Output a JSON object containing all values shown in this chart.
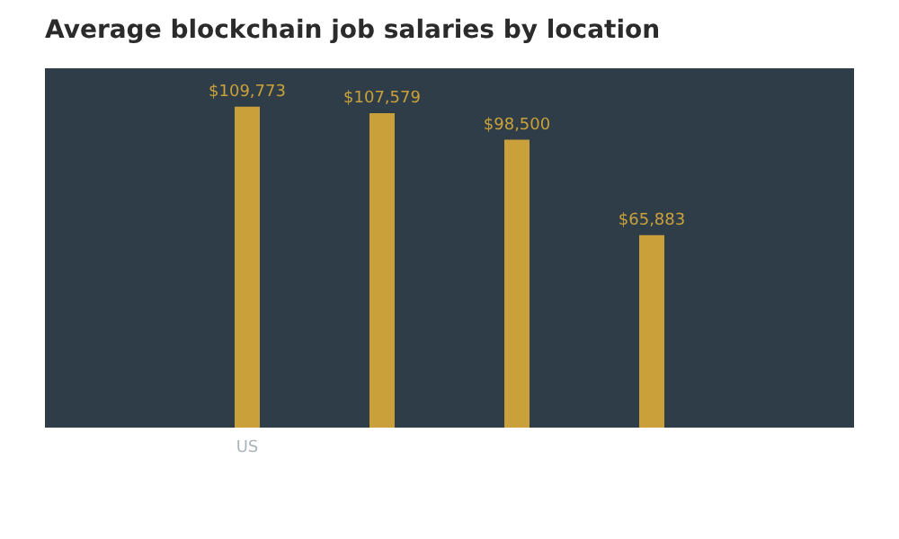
{
  "chart_data": {
    "type": "bar",
    "title": "Average blockchain job salaries by location",
    "categories": [
      "US",
      null,
      null,
      null
    ],
    "values": [
      109773,
      107579,
      98500,
      65883
    ],
    "value_labels": [
      "$109,773",
      "$107,579",
      "$98,500",
      "$65,883"
    ],
    "color": "#c9a03a"
  }
}
